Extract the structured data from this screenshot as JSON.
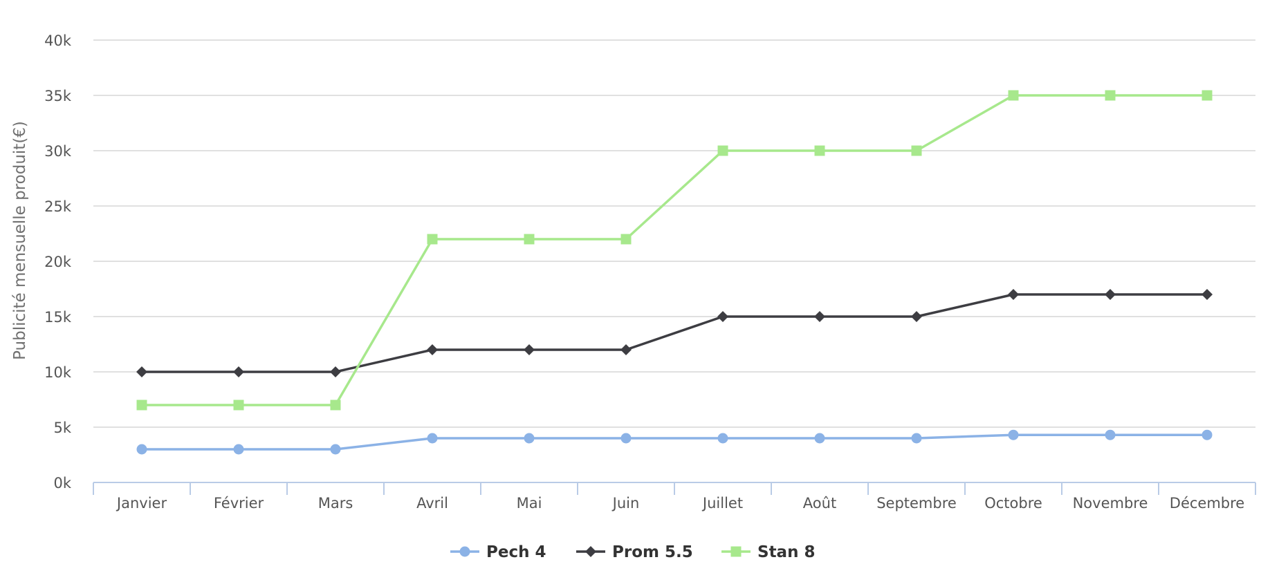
{
  "chart_data": {
    "type": "line",
    "title": "",
    "xlabel": "",
    "ylabel": "Publicité mensuelle produit(€)",
    "categories": [
      "Janvier",
      "Février",
      "Mars",
      "Avril",
      "Mai",
      "Juin",
      "Juillet",
      "Août",
      "Septembre",
      "Octobre",
      "Novembre",
      "Décembre"
    ],
    "ylim": [
      0,
      40000
    ],
    "y_ticks": [
      0,
      5000,
      10000,
      15000,
      20000,
      25000,
      30000,
      35000,
      40000
    ],
    "y_tick_labels": [
      "0k",
      "5k",
      "10k",
      "15k",
      "20k",
      "25k",
      "30k",
      "35k",
      "40k"
    ],
    "grid": true,
    "legend_position": "bottom-center",
    "series": [
      {
        "name": "Pech 4",
        "color": "#8bb2e6",
        "marker": "circle",
        "values": [
          3000,
          3000,
          3000,
          4000,
          4000,
          4000,
          4000,
          4000,
          4000,
          4300,
          4300,
          4300
        ]
      },
      {
        "name": "Prom 5.5",
        "color": "#3d3d42",
        "marker": "diamond",
        "values": [
          10000,
          10000,
          10000,
          12000,
          12000,
          12000,
          15000,
          15000,
          15000,
          17000,
          17000,
          17000
        ]
      },
      {
        "name": "Stan 8",
        "color": "#a7e88c",
        "marker": "square",
        "values": [
          7000,
          7000,
          7000,
          22000,
          22000,
          22000,
          30000,
          30000,
          30000,
          35000,
          35000,
          35000
        ]
      }
    ]
  }
}
